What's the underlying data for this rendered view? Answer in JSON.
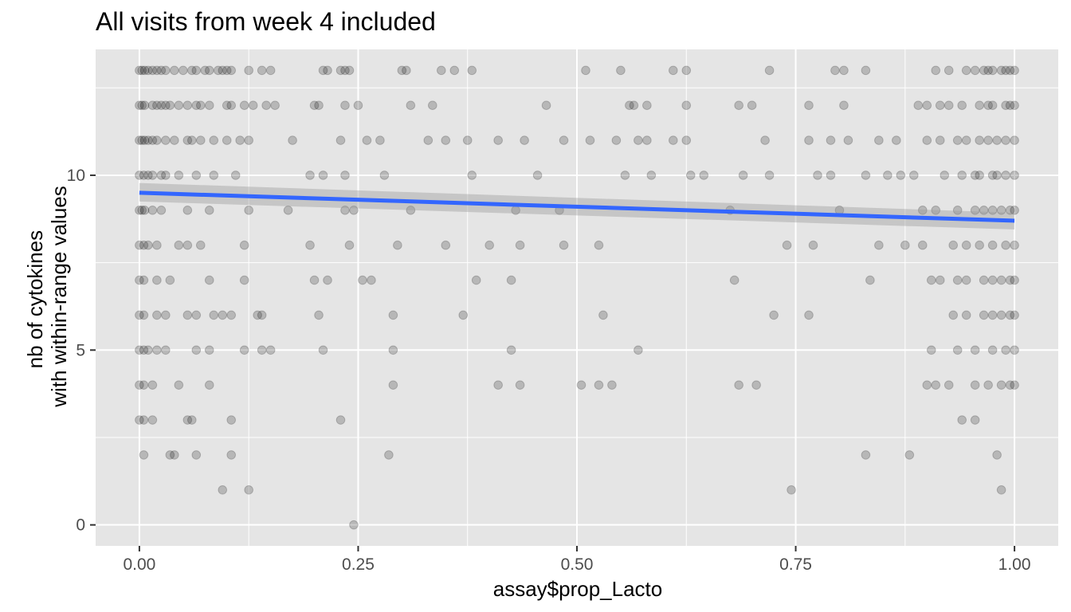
{
  "chart_data": {
    "type": "scatter",
    "title": "All visits from week 4 included",
    "xlabel": "assay$prop_Lacto",
    "ylabel_lines": [
      "nb of cytokines",
      "with within-range values"
    ],
    "xlim": [
      -0.05,
      1.05
    ],
    "ylim": [
      -0.6,
      13.6
    ],
    "x_ticks": [
      0,
      0.25,
      0.5,
      0.75,
      1
    ],
    "x_tick_labels": [
      "0.00",
      "0.25",
      "0.50",
      "0.75",
      "1.00"
    ],
    "y_ticks": [
      0,
      5,
      10
    ],
    "y_tick_labels": [
      "0",
      "5",
      "10"
    ],
    "grid": true,
    "colors": {
      "panel": "#e5e5e5",
      "grid": "#ffffff",
      "point": "#000000",
      "point_opacity": 0.2,
      "fit_line": "#3366ff",
      "ribbon": "#999999",
      "ribbon_opacity": 0.4
    },
    "fit": {
      "x": [
        0,
        1
      ],
      "y": [
        9.5,
        8.7
      ],
      "ci_lower": [
        9.25,
        8.45
      ],
      "ci_upper": [
        9.78,
        8.93
      ]
    },
    "points": [
      [
        0,
        13
      ],
      [
        0.003,
        13
      ],
      [
        0.006,
        13
      ],
      [
        0.01,
        13
      ],
      [
        0.015,
        13
      ],
      [
        0.02,
        13
      ],
      [
        0.025,
        13
      ],
      [
        0.03,
        13
      ],
      [
        0.04,
        13
      ],
      [
        0.05,
        13
      ],
      [
        0.06,
        13
      ],
      [
        0.065,
        13
      ],
      [
        0.075,
        13
      ],
      [
        0.08,
        13
      ],
      [
        0.09,
        13
      ],
      [
        0.095,
        13
      ],
      [
        0.1,
        13
      ],
      [
        0.105,
        13
      ],
      [
        0.125,
        13
      ],
      [
        0.14,
        13
      ],
      [
        0.15,
        13
      ],
      [
        0.21,
        13
      ],
      [
        0.215,
        13
      ],
      [
        0.23,
        13
      ],
      [
        0.235,
        13
      ],
      [
        0.24,
        13
      ],
      [
        0.3,
        13
      ],
      [
        0.305,
        13
      ],
      [
        0.345,
        13
      ],
      [
        0.36,
        13
      ],
      [
        0.38,
        13
      ],
      [
        0.51,
        13
      ],
      [
        0.55,
        13
      ],
      [
        0.61,
        13
      ],
      [
        0.625,
        13
      ],
      [
        0.72,
        13
      ],
      [
        0.795,
        13
      ],
      [
        0.805,
        13
      ],
      [
        0.83,
        13
      ],
      [
        0.91,
        13
      ],
      [
        0.925,
        13
      ],
      [
        0.945,
        13
      ],
      [
        0.955,
        13
      ],
      [
        0.965,
        13
      ],
      [
        0.97,
        13
      ],
      [
        0.975,
        13
      ],
      [
        0.985,
        13
      ],
      [
        0.99,
        13
      ],
      [
        0.995,
        13
      ],
      [
        1,
        13
      ],
      [
        0,
        12
      ],
      [
        0.003,
        12
      ],
      [
        0.006,
        12
      ],
      [
        0.015,
        12
      ],
      [
        0.02,
        12
      ],
      [
        0.025,
        12
      ],
      [
        0.03,
        12
      ],
      [
        0.035,
        12
      ],
      [
        0.045,
        12
      ],
      [
        0.055,
        12
      ],
      [
        0.065,
        12
      ],
      [
        0.07,
        12
      ],
      [
        0.08,
        12
      ],
      [
        0.1,
        12
      ],
      [
        0.105,
        12
      ],
      [
        0.12,
        12
      ],
      [
        0.13,
        12
      ],
      [
        0.145,
        12
      ],
      [
        0.155,
        12
      ],
      [
        0.2,
        12
      ],
      [
        0.205,
        12
      ],
      [
        0.235,
        12
      ],
      [
        0.25,
        12
      ],
      [
        0.31,
        12
      ],
      [
        0.335,
        12
      ],
      [
        0.465,
        12
      ],
      [
        0.56,
        12
      ],
      [
        0.565,
        12
      ],
      [
        0.58,
        12
      ],
      [
        0.625,
        12
      ],
      [
        0.685,
        12
      ],
      [
        0.7,
        12
      ],
      [
        0.765,
        12
      ],
      [
        0.805,
        12
      ],
      [
        0.89,
        12
      ],
      [
        0.9,
        12
      ],
      [
        0.915,
        12
      ],
      [
        0.925,
        12
      ],
      [
        0.94,
        12
      ],
      [
        0.96,
        12
      ],
      [
        0.97,
        12
      ],
      [
        0.975,
        12
      ],
      [
        0.99,
        12
      ],
      [
        0.995,
        12
      ],
      [
        1,
        12
      ],
      [
        0,
        11
      ],
      [
        0.003,
        11
      ],
      [
        0.006,
        11
      ],
      [
        0.01,
        11
      ],
      [
        0.015,
        11
      ],
      [
        0.02,
        11
      ],
      [
        0.03,
        11
      ],
      [
        0.04,
        11
      ],
      [
        0.055,
        11
      ],
      [
        0.06,
        11
      ],
      [
        0.07,
        11
      ],
      [
        0.085,
        11
      ],
      [
        0.1,
        11
      ],
      [
        0.115,
        11
      ],
      [
        0.125,
        11
      ],
      [
        0.175,
        11
      ],
      [
        0.23,
        11
      ],
      [
        0.26,
        11
      ],
      [
        0.275,
        11
      ],
      [
        0.33,
        11
      ],
      [
        0.35,
        11
      ],
      [
        0.375,
        11
      ],
      [
        0.41,
        11
      ],
      [
        0.44,
        11
      ],
      [
        0.485,
        11
      ],
      [
        0.515,
        11
      ],
      [
        0.545,
        11
      ],
      [
        0.57,
        11
      ],
      [
        0.58,
        11
      ],
      [
        0.61,
        11
      ],
      [
        0.625,
        11
      ],
      [
        0.715,
        11
      ],
      [
        0.765,
        11
      ],
      [
        0.79,
        11
      ],
      [
        0.81,
        11
      ],
      [
        0.845,
        11
      ],
      [
        0.865,
        11
      ],
      [
        0.9,
        11
      ],
      [
        0.915,
        11
      ],
      [
        0.935,
        11
      ],
      [
        0.945,
        11
      ],
      [
        0.96,
        11
      ],
      [
        0.97,
        11
      ],
      [
        0.98,
        11
      ],
      [
        0.99,
        11
      ],
      [
        1,
        11
      ],
      [
        0,
        10
      ],
      [
        0.005,
        10
      ],
      [
        0.01,
        10
      ],
      [
        0.015,
        10
      ],
      [
        0.025,
        10
      ],
      [
        0.03,
        10
      ],
      [
        0.045,
        10
      ],
      [
        0.065,
        10
      ],
      [
        0.085,
        10
      ],
      [
        0.11,
        10
      ],
      [
        0.195,
        10
      ],
      [
        0.21,
        10
      ],
      [
        0.235,
        10
      ],
      [
        0.28,
        10
      ],
      [
        0.38,
        10
      ],
      [
        0.455,
        10
      ],
      [
        0.555,
        10
      ],
      [
        0.585,
        10
      ],
      [
        0.63,
        10
      ],
      [
        0.645,
        10
      ],
      [
        0.69,
        10
      ],
      [
        0.72,
        10
      ],
      [
        0.775,
        10
      ],
      [
        0.79,
        10
      ],
      [
        0.83,
        10
      ],
      [
        0.855,
        10
      ],
      [
        0.87,
        10
      ],
      [
        0.885,
        10
      ],
      [
        0.92,
        10
      ],
      [
        0.94,
        10
      ],
      [
        0.955,
        10
      ],
      [
        0.96,
        10
      ],
      [
        0.975,
        10
      ],
      [
        0.98,
        10
      ],
      [
        0.99,
        10
      ],
      [
        1,
        10
      ],
      [
        0,
        9
      ],
      [
        0.003,
        9
      ],
      [
        0.006,
        9
      ],
      [
        0.015,
        9
      ],
      [
        0.025,
        9
      ],
      [
        0.055,
        9
      ],
      [
        0.08,
        9
      ],
      [
        0.125,
        9
      ],
      [
        0.17,
        9
      ],
      [
        0.235,
        9
      ],
      [
        0.245,
        9
      ],
      [
        0.31,
        9
      ],
      [
        0.43,
        9
      ],
      [
        0.48,
        9
      ],
      [
        0.675,
        9
      ],
      [
        0.8,
        9
      ],
      [
        0.895,
        9
      ],
      [
        0.91,
        9
      ],
      [
        0.935,
        9
      ],
      [
        0.955,
        9
      ],
      [
        0.965,
        9
      ],
      [
        0.975,
        9
      ],
      [
        0.985,
        9
      ],
      [
        0.995,
        9
      ],
      [
        1,
        9
      ],
      [
        0,
        8
      ],
      [
        0.005,
        8
      ],
      [
        0.01,
        8
      ],
      [
        0.02,
        8
      ],
      [
        0.045,
        8
      ],
      [
        0.055,
        8
      ],
      [
        0.07,
        8
      ],
      [
        0.12,
        8
      ],
      [
        0.195,
        8
      ],
      [
        0.24,
        8
      ],
      [
        0.295,
        8
      ],
      [
        0.35,
        8
      ],
      [
        0.4,
        8
      ],
      [
        0.435,
        8
      ],
      [
        0.485,
        8
      ],
      [
        0.525,
        8
      ],
      [
        0.74,
        8
      ],
      [
        0.77,
        8
      ],
      [
        0.845,
        8
      ],
      [
        0.875,
        8
      ],
      [
        0.895,
        8
      ],
      [
        0.93,
        8
      ],
      [
        0.945,
        8
      ],
      [
        0.96,
        8
      ],
      [
        0.975,
        8
      ],
      [
        0.99,
        8
      ],
      [
        1,
        8
      ],
      [
        0,
        7
      ],
      [
        0.005,
        7
      ],
      [
        0.02,
        7
      ],
      [
        0.035,
        7
      ],
      [
        0.08,
        7
      ],
      [
        0.12,
        7
      ],
      [
        0.2,
        7
      ],
      [
        0.215,
        7
      ],
      [
        0.255,
        7
      ],
      [
        0.265,
        7
      ],
      [
        0.385,
        7
      ],
      [
        0.425,
        7
      ],
      [
        0.68,
        7
      ],
      [
        0.835,
        7
      ],
      [
        0.905,
        7
      ],
      [
        0.915,
        7
      ],
      [
        0.935,
        7
      ],
      [
        0.945,
        7
      ],
      [
        0.965,
        7
      ],
      [
        0.975,
        7
      ],
      [
        0.985,
        7
      ],
      [
        0.995,
        7
      ],
      [
        1,
        7
      ],
      [
        0,
        6
      ],
      [
        0.005,
        6
      ],
      [
        0.02,
        6
      ],
      [
        0.03,
        6
      ],
      [
        0.055,
        6
      ],
      [
        0.065,
        6
      ],
      [
        0.085,
        6
      ],
      [
        0.095,
        6
      ],
      [
        0.105,
        6
      ],
      [
        0.135,
        6
      ],
      [
        0.14,
        6
      ],
      [
        0.205,
        6
      ],
      [
        0.29,
        6
      ],
      [
        0.37,
        6
      ],
      [
        0.53,
        6
      ],
      [
        0.725,
        6
      ],
      [
        0.765,
        6
      ],
      [
        0.93,
        6
      ],
      [
        0.945,
        6
      ],
      [
        0.965,
        6
      ],
      [
        0.975,
        6
      ],
      [
        0.985,
        6
      ],
      [
        0.995,
        6
      ],
      [
        1,
        6
      ],
      [
        0,
        5
      ],
      [
        0.005,
        5
      ],
      [
        0.01,
        5
      ],
      [
        0.02,
        5
      ],
      [
        0.03,
        5
      ],
      [
        0.065,
        5
      ],
      [
        0.08,
        5
      ],
      [
        0.12,
        5
      ],
      [
        0.14,
        5
      ],
      [
        0.15,
        5
      ],
      [
        0.21,
        5
      ],
      [
        0.29,
        5
      ],
      [
        0.425,
        5
      ],
      [
        0.57,
        5
      ],
      [
        0.905,
        5
      ],
      [
        0.935,
        5
      ],
      [
        0.955,
        5
      ],
      [
        0.975,
        5
      ],
      [
        0.99,
        5
      ],
      [
        1,
        5
      ],
      [
        0,
        4
      ],
      [
        0.005,
        4
      ],
      [
        0.015,
        4
      ],
      [
        0.045,
        4
      ],
      [
        0.08,
        4
      ],
      [
        0.29,
        4
      ],
      [
        0.41,
        4
      ],
      [
        0.435,
        4
      ],
      [
        0.505,
        4
      ],
      [
        0.525,
        4
      ],
      [
        0.54,
        4
      ],
      [
        0.685,
        4
      ],
      [
        0.705,
        4
      ],
      [
        0.9,
        4
      ],
      [
        0.91,
        4
      ],
      [
        0.925,
        4
      ],
      [
        0.955,
        4
      ],
      [
        0.97,
        4
      ],
      [
        0.985,
        4
      ],
      [
        0.995,
        4
      ],
      [
        1,
        4
      ],
      [
        0,
        3
      ],
      [
        0.005,
        3
      ],
      [
        0.015,
        3
      ],
      [
        0.055,
        3
      ],
      [
        0.06,
        3
      ],
      [
        0.105,
        3
      ],
      [
        0.23,
        3
      ],
      [
        0.94,
        3
      ],
      [
        0.955,
        3
      ],
      [
        0.005,
        2
      ],
      [
        0.035,
        2
      ],
      [
        0.04,
        2
      ],
      [
        0.065,
        2
      ],
      [
        0.105,
        2
      ],
      [
        0.285,
        2
      ],
      [
        0.83,
        2
      ],
      [
        0.88,
        2
      ],
      [
        0.98,
        2
      ],
      [
        0.095,
        1
      ],
      [
        0.125,
        1
      ],
      [
        0.745,
        1
      ],
      [
        0.985,
        1
      ],
      [
        0.245,
        0
      ]
    ]
  }
}
